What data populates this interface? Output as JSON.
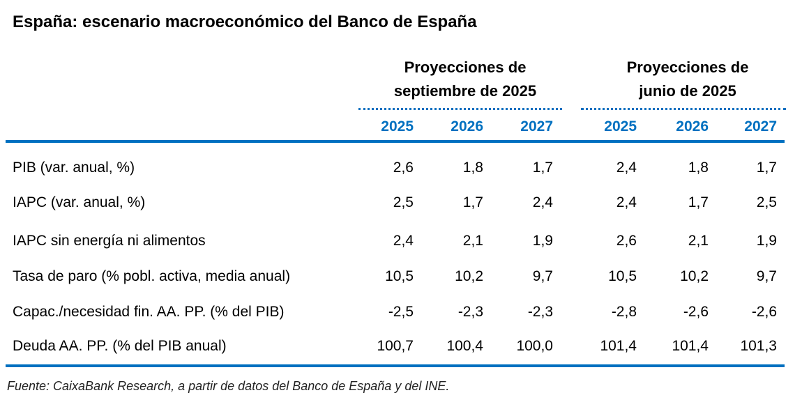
{
  "title": "España: escenario macroeconómico del Banco de España",
  "groups": [
    {
      "line1": "Proyecciones de",
      "line2": "septiembre de 2025"
    },
    {
      "line1": "Proyecciones de",
      "line2": "junio de 2025"
    }
  ],
  "years": [
    "2025",
    "2026",
    "2027",
    "2025",
    "2026",
    "2027"
  ],
  "rows": [
    {
      "label": "PIB (var. anual, %)",
      "values": [
        "2,6",
        "1,8",
        "1,7",
        "2,4",
        "1,8",
        "1,7"
      ]
    },
    {
      "label": "IAPC (var. anual, %)",
      "values": [
        "2,5",
        "1,7",
        "2,4",
        "2,4",
        "1,7",
        "2,5"
      ]
    },
    {
      "label": "IAPC sin energía ni alimentos",
      "values": [
        "2,4",
        "2,1",
        "1,9",
        "2,6",
        "2,1",
        "1,9"
      ]
    },
    {
      "label": "Tasa de paro (% pobl. activa, media anual)",
      "values": [
        "10,5",
        "10,2",
        "9,7",
        "10,5",
        "10,2",
        "9,7"
      ]
    },
    {
      "label": "Capac./necesidad fin. AA. PP. (% del PIB)",
      "values": [
        "-2,5",
        "-2,3",
        "-2,3",
        "-2,8",
        "-2,6",
        "-2,6"
      ]
    },
    {
      "label": "Deuda AA. PP. (% del PIB anual)",
      "values": [
        "100,7",
        "100,4",
        "100,0",
        "101,4",
        "101,4",
        "101,3"
      ]
    }
  ],
  "footnote": "Fuente: CaixaBank Research, a partir de datos del Banco de España y del INE.",
  "colors": {
    "accent": "#0070C0"
  }
}
